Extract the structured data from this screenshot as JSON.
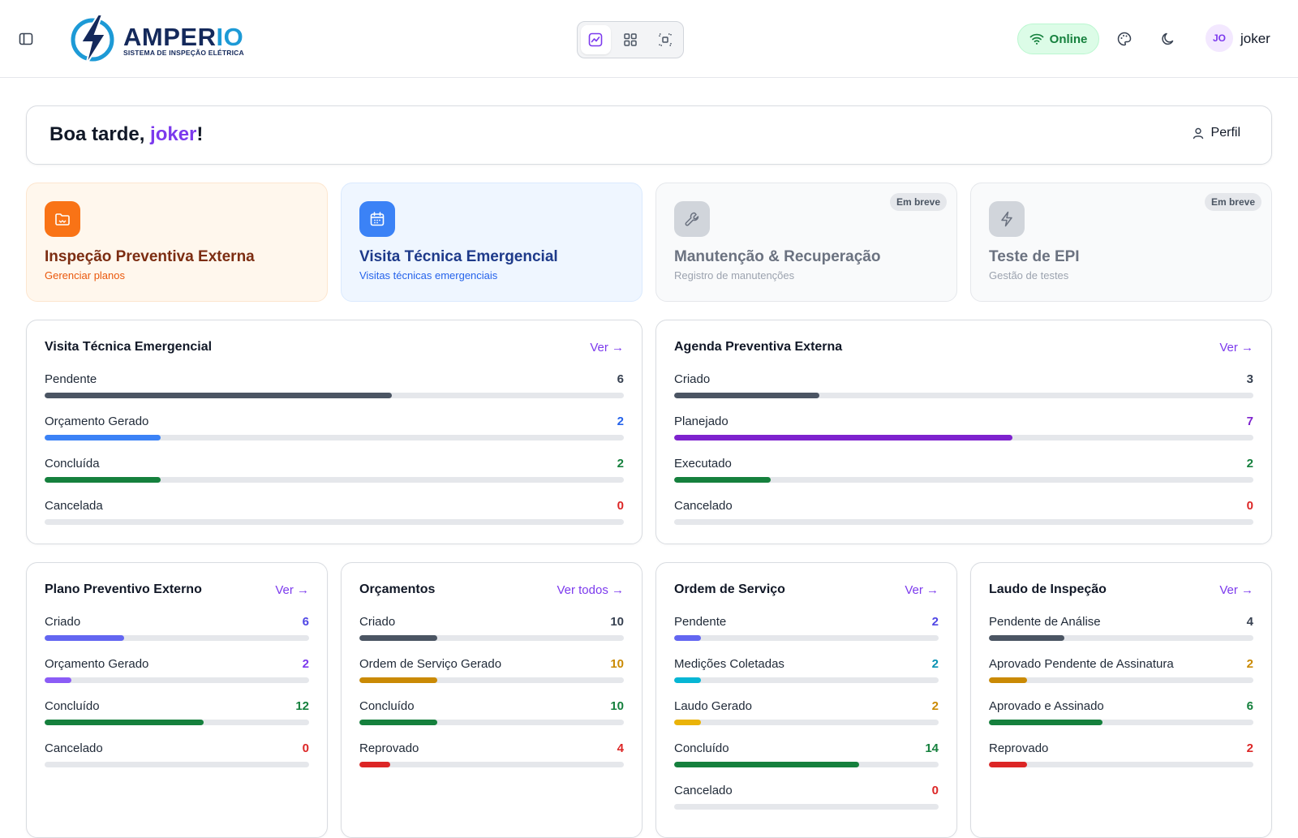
{
  "header": {
    "logo": {
      "brand_main": "AMPER",
      "brand_accent": "IO",
      "tagline": "SISTEMA DE INSPEÇÃO ELÉTRICA"
    },
    "mode_switch": [
      {
        "icon": "chart-line-icon",
        "active": true
      },
      {
        "icon": "grid-icon",
        "active": false
      },
      {
        "icon": "focus-icon",
        "active": false
      }
    ],
    "status_label": "Online",
    "avatar_initials": "JO",
    "username": "joker"
  },
  "greeting": {
    "prefix": "Boa tarde, ",
    "name": "joker",
    "suffix": "!",
    "profile_label": "Perfil"
  },
  "modules": [
    {
      "title": "Inspeção Preventiva Externa",
      "subtitle": "Gerenciar planos",
      "icon": "folder-icon",
      "bg": "#fff7ed",
      "border": "#fde6cf",
      "icon_bg": "#f97316",
      "title_color": "#7c2d12",
      "sub_color": "#ea580c",
      "badge": ""
    },
    {
      "title": "Visita Técnica Emergencial",
      "subtitle": "Visitas técnicas emergenciais",
      "icon": "calendar-icon",
      "bg": "#eff6ff",
      "border": "#dbeafe",
      "icon_bg": "#3b82f6",
      "title_color": "#1e3a8a",
      "sub_color": "#2563eb",
      "badge": ""
    },
    {
      "title": "Manutenção & Recuperação",
      "subtitle": "Registro de manutenções",
      "icon": "wrench-icon",
      "bg": "#f9fafb",
      "border": "#e5e7eb",
      "icon_bg": "#d1d5db",
      "title_color": "#6b7280",
      "sub_color": "#9ca3af",
      "badge": "Em breve"
    },
    {
      "title": "Teste de EPI",
      "subtitle": "Gestão de testes",
      "icon": "bolt-icon",
      "bg": "#f9fafb",
      "border": "#e5e7eb",
      "icon_bg": "#d1d5db",
      "title_color": "#6b7280",
      "sub_color": "#9ca3af",
      "badge": "Em breve"
    }
  ],
  "stat_cards": [
    {
      "title": "Visita Técnica Emergencial",
      "link": "Ver →",
      "max": 10,
      "rows": [
        {
          "label": "Pendente",
          "value": 6,
          "color": "#4b5563",
          "value_color": "#374151"
        },
        {
          "label": "Orçamento Gerado",
          "value": 2,
          "color": "#3b82f6",
          "value_color": "#2563eb"
        },
        {
          "label": "Concluída",
          "value": 2,
          "color": "#15803d",
          "value_color": "#15803d"
        },
        {
          "label": "Cancelada",
          "value": 0,
          "color": "#dc2626",
          "value_color": "#dc2626"
        }
      ]
    },
    {
      "title": "Agenda Preventiva Externa",
      "link": "Ver →",
      "max": 12,
      "rows": [
        {
          "label": "Criado",
          "value": 3,
          "color": "#4b5563",
          "value_color": "#374151"
        },
        {
          "label": "Planejado",
          "value": 7,
          "color": "#7e22ce",
          "value_color": "#7e22ce"
        },
        {
          "label": "Executado",
          "value": 2,
          "color": "#15803d",
          "value_color": "#15803d"
        },
        {
          "label": "Cancelado",
          "value": 0,
          "color": "#dc2626",
          "value_color": "#dc2626"
        }
      ]
    },
    {
      "title": "Plano Preventivo Externo",
      "link": "Ver →",
      "max": 20,
      "rows": [
        {
          "label": "Criado",
          "value": 6,
          "color": "#6366f1",
          "value_color": "#4f46e5"
        },
        {
          "label": "Orçamento Gerado",
          "value": 2,
          "color": "#8b5cf6",
          "value_color": "#7c3aed"
        },
        {
          "label": "Concluído",
          "value": 12,
          "color": "#15803d",
          "value_color": "#15803d"
        },
        {
          "label": "Cancelado",
          "value": 0,
          "color": "#dc2626",
          "value_color": "#dc2626"
        }
      ]
    },
    {
      "title": "Orçamentos",
      "link": "Ver todos →",
      "max": 34,
      "rows": [
        {
          "label": "Criado",
          "value": 10,
          "color": "#4b5563",
          "value_color": "#374151"
        },
        {
          "label": "Ordem de Serviço Gerado",
          "value": 10,
          "color": "#ca8a04",
          "value_color": "#ca8a04"
        },
        {
          "label": "Concluído",
          "value": 10,
          "color": "#15803d",
          "value_color": "#15803d"
        },
        {
          "label": "Reprovado",
          "value": 4,
          "color": "#dc2626",
          "value_color": "#dc2626"
        }
      ]
    },
    {
      "title": "Ordem de Serviço",
      "link": "Ver →",
      "max": 20,
      "rows": [
        {
          "label": "Pendente",
          "value": 2,
          "color": "#6366f1",
          "value_color": "#4f46e5"
        },
        {
          "label": "Medições Coletadas",
          "value": 2,
          "color": "#06b6d4",
          "value_color": "#0891b2"
        },
        {
          "label": "Laudo Gerado",
          "value": 2,
          "color": "#eab308",
          "value_color": "#ca8a04"
        },
        {
          "label": "Concluído",
          "value": 14,
          "color": "#15803d",
          "value_color": "#15803d"
        },
        {
          "label": "Cancelado",
          "value": 0,
          "color": "#dc2626",
          "value_color": "#dc2626"
        }
      ]
    },
    {
      "title": "Laudo de Inspeção",
      "link": "Ver →",
      "max": 14,
      "rows": [
        {
          "label": "Pendente de Análise",
          "value": 4,
          "color": "#4b5563",
          "value_color": "#374151"
        },
        {
          "label": "Aprovado Pendente de Assinatura",
          "value": 2,
          "color": "#ca8a04",
          "value_color": "#ca8a04"
        },
        {
          "label": "Aprovado e Assinado",
          "value": 6,
          "color": "#15803d",
          "value_color": "#15803d"
        },
        {
          "label": "Reprovado",
          "value": 2,
          "color": "#dc2626",
          "value_color": "#dc2626"
        }
      ]
    }
  ]
}
